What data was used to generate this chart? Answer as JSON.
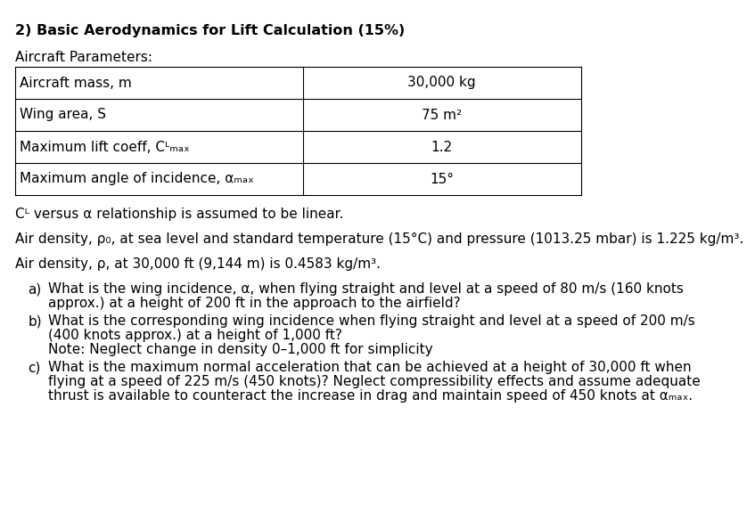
{
  "title": "2) Basic Aerodynamics for Lift Calculation (15%)",
  "subtitle": "Aircraft Parameters:",
  "table_rows": [
    [
      "Aircraft mass, m",
      "30,000 kg"
    ],
    [
      "Wing area, S",
      "75 m²"
    ],
    [
      "Maximum lift coeff, Cᴸₘₐₓ",
      "1.2"
    ],
    [
      "Maximum angle of incidence, αₘₐₓ",
      "15°"
    ]
  ],
  "cl_note": "Cᴸ versus α relationship is assumed to be linear.",
  "density_note1": "Air density, ρ₀, at sea level and standard temperature (15°C) and pressure (1013.25 mbar) is 1.225 kg/m³.",
  "density_note2": "Air density, ρ, at 30,000 ft (9,144 m) is 0.4583 kg/m³.",
  "questions": [
    {
      "label": "a)",
      "text": "What is the wing incidence, α, when flying straight and level at a speed of 80 m/s (160 knots approx.) at a height of 200 ft in the approach to the airfield?"
    },
    {
      "label": "b)",
      "text": "What is the corresponding wing incidence when flying straight and level at a speed of 200 m/s (400 knots approx.) at a height of 1,000 ft?\nNote: Neglect change in density 0–1,000 ft for simplicity"
    },
    {
      "label": "c)",
      "text": "What is the maximum normal acceleration that can be achieved at a height of 30,000 ft when flying at a speed of 225 m/s (450 knots)? Neglect compressibility effects and assume adequate thrust is available to counteract the increase in drag and maintain speed of 450 knots at αₘₐₓ."
    }
  ],
  "bg_color": "#ffffff",
  "text_color": "#000000",
  "font_size": 11,
  "title_font_size": 11.5
}
